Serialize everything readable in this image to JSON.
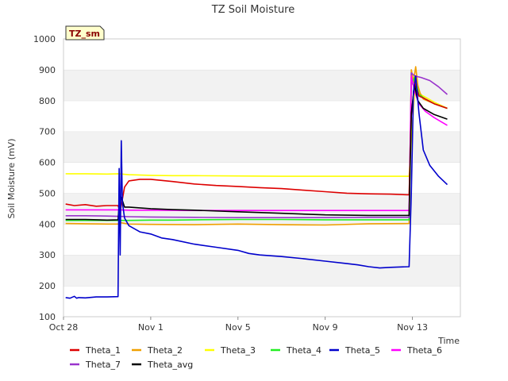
{
  "chart_data": {
    "type": "line",
    "title": "TZ Soil Moisture",
    "site_label": "TZ_sm",
    "xlabel": "Time",
    "ylabel": "Soil Moisture (mV)",
    "x_unit": "days since Oct 28",
    "xlim": [
      0,
      18.2
    ],
    "ylim": [
      100,
      1000
    ],
    "yticks": [
      100,
      200,
      300,
      400,
      500,
      600,
      700,
      800,
      900,
      1000
    ],
    "xticks": [
      {
        "label": "Oct 28",
        "day": 0
      },
      {
        "label": "Nov 1",
        "day": 4
      },
      {
        "label": "Nov 5",
        "day": 8
      },
      {
        "label": "Nov 9",
        "day": 12
      },
      {
        "label": "Nov 13",
        "day": 16
      }
    ],
    "grid": "horizontal bands",
    "legend_position": "bottom",
    "colors": {
      "Theta_1": "#dd0000",
      "Theta_2": "#f0a000",
      "Theta_3": "#ffff00",
      "Theta_4": "#22ee22",
      "Theta_5": "#0000cc",
      "Theta_6": "#ff00ff",
      "Theta_7": "#9933cc",
      "Theta_avg": "#000000"
    },
    "legend": [
      "Theta_1",
      "Theta_2",
      "Theta_3",
      "Theta_4",
      "Theta_5",
      "Theta_6",
      "Theta_7",
      "Theta_avg"
    ],
    "series": [
      {
        "name": "Theta_3",
        "x": [
          0.1,
          1,
          2,
          2.5,
          3,
          4,
          5,
          6,
          8,
          10,
          12,
          14,
          15.85,
          16.1,
          16.5,
          17,
          17.6
        ],
        "y": [
          563,
          563,
          562,
          563,
          560,
          558,
          557,
          557,
          556,
          555,
          555,
          555,
          555,
          830,
          815,
          795,
          775
        ]
      },
      {
        "name": "Theta_2",
        "x": [
          0.1,
          1,
          2,
          2.5,
          2.6,
          3,
          4,
          6,
          8,
          10,
          12,
          14,
          15.85,
          15.95,
          16.05,
          16.15,
          16.25,
          16.35,
          16.5,
          17,
          17.6
        ],
        "y": [
          402,
          401,
          400,
          400,
          405,
          400,
          399,
          398,
          400,
          398,
          397,
          401,
          402,
          900,
          860,
          910,
          850,
          825,
          805,
          790,
          775
        ]
      },
      {
        "name": "Theta_4",
        "x": [
          0.1,
          1,
          2,
          2.55,
          3,
          4,
          5,
          6,
          8,
          10,
          12,
          14,
          15.85,
          15.95,
          16.1,
          16.3,
          16.6,
          17,
          17.6
        ],
        "y": [
          412,
          412,
          412,
          412,
          412,
          413,
          413,
          414,
          415,
          415,
          414,
          414,
          414,
          850,
          875,
          820,
          805,
          790,
          775
        ]
      },
      {
        "name": "Theta_7",
        "x": [
          0.1,
          1,
          2,
          2.55,
          3,
          4,
          6,
          8,
          10,
          12,
          14,
          15.85,
          15.95,
          16.1,
          16.4,
          16.8,
          17.2,
          17.6
        ],
        "y": [
          427,
          427,
          426,
          425,
          424,
          423,
          422,
          421,
          421,
          421,
          422,
          422,
          890,
          880,
          875,
          865,
          845,
          820
        ]
      },
      {
        "name": "Theta_6",
        "x": [
          0.1,
          1,
          2,
          2.55,
          3,
          4,
          6,
          8,
          10,
          12,
          14,
          15.85,
          15.95,
          16.1,
          16.3,
          16.6,
          17,
          17.6
        ],
        "y": [
          446,
          446,
          446,
          446,
          445,
          445,
          444,
          444,
          444,
          444,
          444,
          444,
          880,
          830,
          790,
          765,
          745,
          720
        ]
      },
      {
        "name": "Theta_1",
        "x": [
          0.1,
          0.5,
          1,
          1.5,
          2,
          2.5,
          2.6,
          2.8,
          3,
          3.5,
          4,
          5,
          6,
          7,
          8,
          9,
          10,
          11,
          12,
          13,
          14,
          15,
          15.85,
          15.95,
          16.1,
          16.3,
          16.6,
          17,
          17.6
        ],
        "y": [
          465,
          460,
          463,
          458,
          460,
          460,
          440,
          520,
          540,
          545,
          545,
          538,
          530,
          525,
          522,
          518,
          515,
          510,
          505,
          500,
          498,
          497,
          495,
          750,
          860,
          815,
          805,
          790,
          775
        ]
      },
      {
        "name": "Theta_avg",
        "x": [
          0.1,
          1,
          2,
          2.5,
          2.55,
          2.65,
          2.8,
          3,
          4,
          5,
          6,
          8,
          10,
          12,
          14,
          15.85,
          15.95,
          16.1,
          16.25,
          16.5,
          17,
          17.6
        ],
        "y": [
          415,
          415,
          413,
          414,
          460,
          487,
          455,
          455,
          450,
          447,
          445,
          440,
          435,
          430,
          428,
          428,
          760,
          850,
          800,
          775,
          755,
          740
        ]
      },
      {
        "name": "Theta_5",
        "x": [
          0.1,
          0.3,
          0.5,
          0.6,
          0.7,
          1,
          1.5,
          2,
          2.5,
          2.55,
          2.6,
          2.65,
          2.7,
          2.8,
          3,
          3.5,
          4,
          4.5,
          5,
          6,
          7,
          8,
          8.5,
          9,
          10,
          11,
          12,
          13,
          13.5,
          14,
          14.5,
          15,
          15.85,
          15.95,
          16.05,
          16.15,
          16.3,
          16.5,
          16.8,
          17.2,
          17.6
        ],
        "y": [
          162,
          160,
          166,
          160,
          162,
          161,
          164,
          164,
          165,
          580,
          300,
          670,
          470,
          420,
          395,
          375,
          368,
          355,
          350,
          335,
          325,
          315,
          305,
          300,
          295,
          288,
          280,
          272,
          268,
          262,
          258,
          260,
          262,
          500,
          830,
          880,
          760,
          640,
          590,
          555,
          528
        ]
      }
    ]
  }
}
